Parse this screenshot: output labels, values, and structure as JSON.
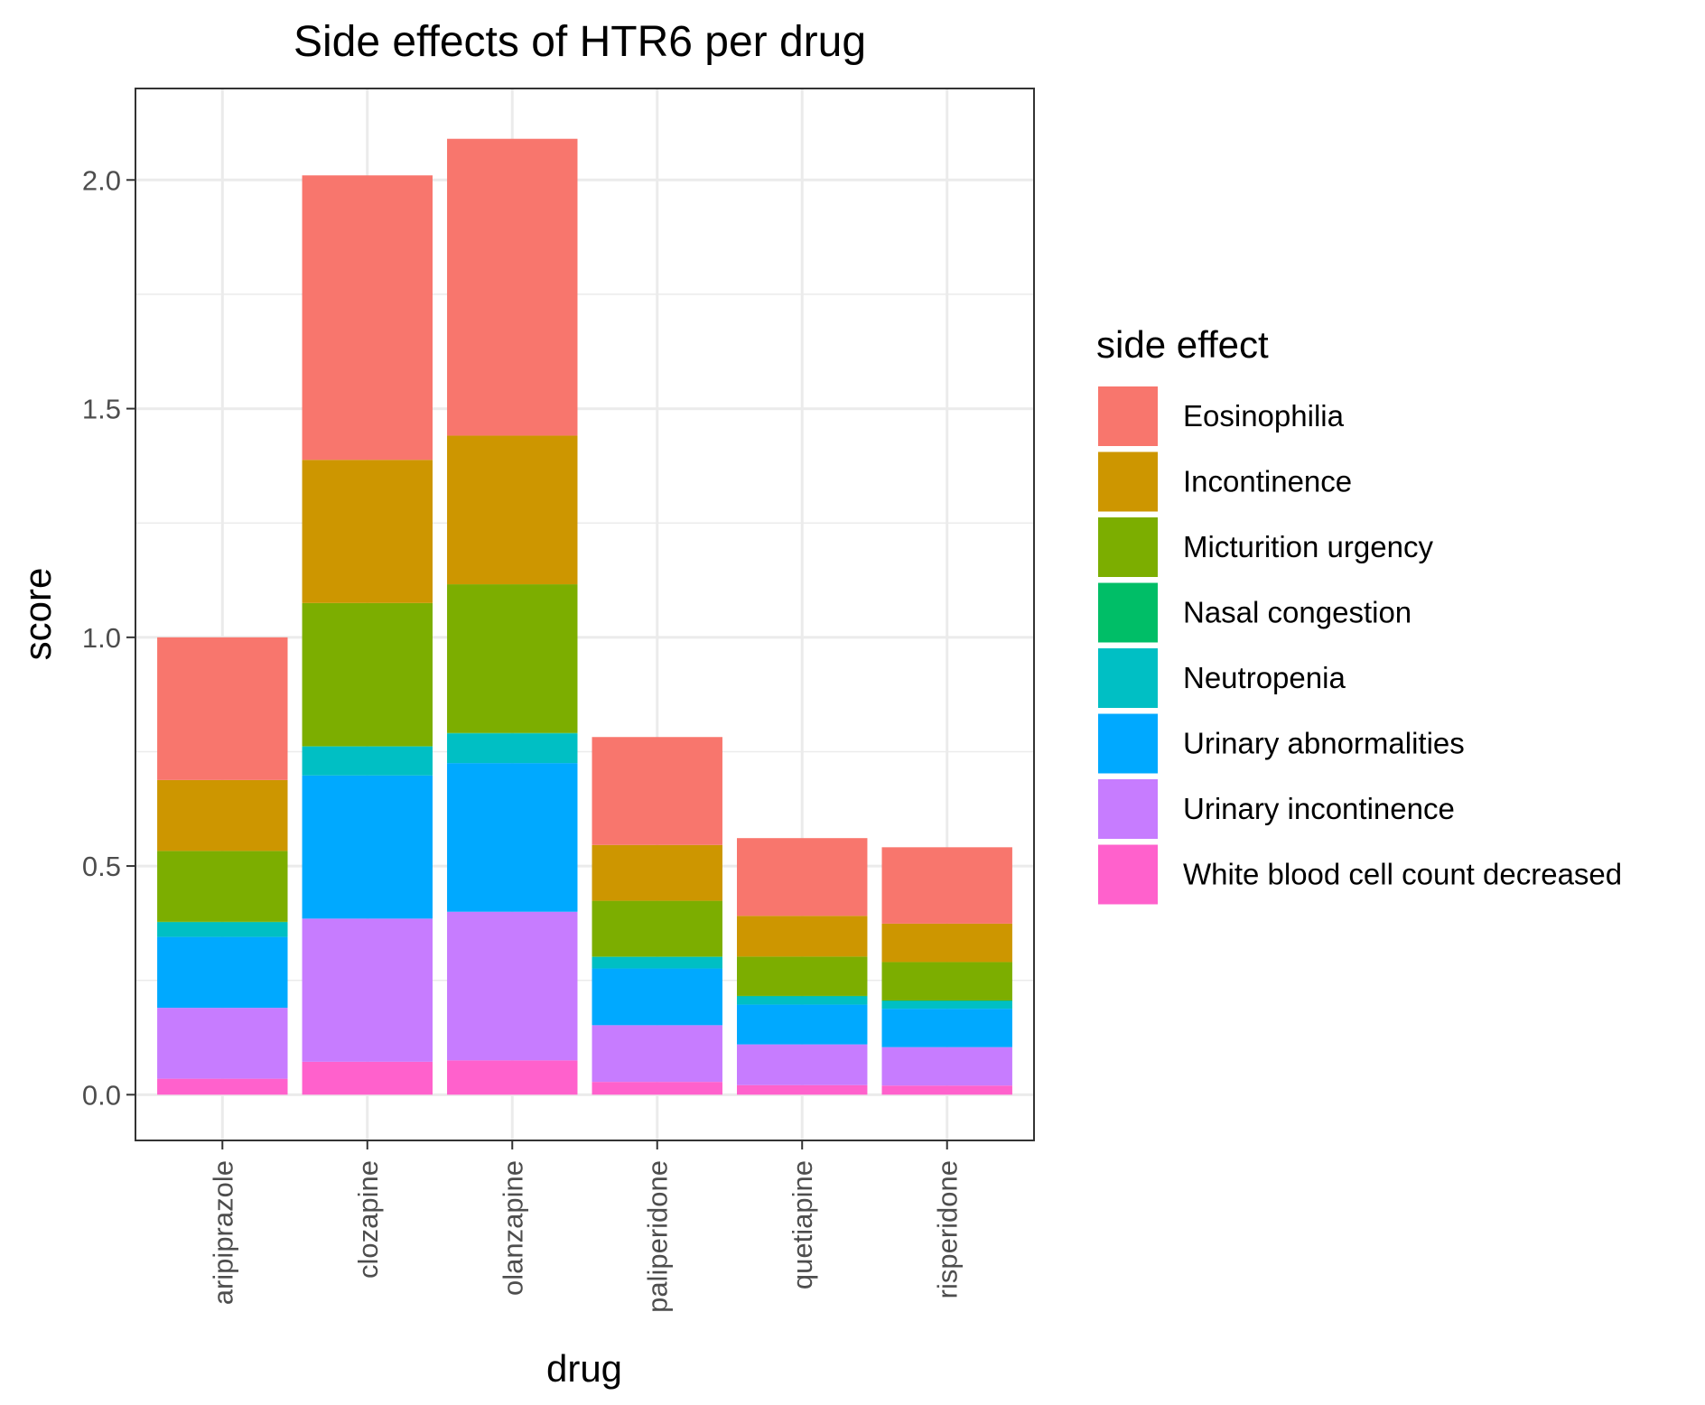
{
  "chart_data": {
    "type": "bar",
    "stacked": true,
    "title": "Side effects of HTR6 per drug",
    "xlabel": "drug",
    "ylabel": "score",
    "ylim": [
      -0.1,
      2.2
    ],
    "yticks": [
      "0.0",
      "0.5",
      "1.0",
      "1.5",
      "2.0"
    ],
    "grid": true,
    "legend_title": "side effect",
    "legend_position": "right",
    "categories": [
      "aripiprazole",
      "clozapine",
      "olanzapine",
      "paliperidone",
      "quetiapine",
      "risperidone"
    ],
    "series": [
      {
        "name": "White blood cell count decreased",
        "color": "#FF61CC",
        "values": [
          0.035,
          0.072,
          0.075,
          0.028,
          0.021,
          0.02
        ]
      },
      {
        "name": "Urinary incontinence",
        "color": "#C77CFF",
        "values": [
          0.155,
          0.313,
          0.325,
          0.124,
          0.089,
          0.084
        ]
      },
      {
        "name": "Urinary abnormalities",
        "color": "#00A9FF",
        "values": [
          0.155,
          0.313,
          0.325,
          0.124,
          0.087,
          0.084
        ]
      },
      {
        "name": "Neutropenia",
        "color": "#00BFC4",
        "values": [
          0.032,
          0.063,
          0.065,
          0.025,
          0.018,
          0.017
        ]
      },
      {
        "name": "Nasal congestion",
        "color": "#00BE67",
        "values": [
          0.001,
          0.001,
          0.001,
          0.001,
          0.001,
          0.001
        ]
      },
      {
        "name": "Micturition urgency",
        "color": "#7CAE00",
        "values": [
          0.155,
          0.313,
          0.325,
          0.122,
          0.086,
          0.084
        ]
      },
      {
        "name": "Incontinence",
        "color": "#CD9600",
        "values": [
          0.155,
          0.313,
          0.325,
          0.122,
          0.089,
          0.084
        ]
      },
      {
        "name": "Eosinophilia",
        "color": "#F8766D",
        "values": [
          0.312,
          0.622,
          0.649,
          0.236,
          0.17,
          0.167
        ]
      }
    ],
    "legend_order": [
      "Eosinophilia",
      "Incontinence",
      "Micturition urgency",
      "Nasal congestion",
      "Neutropenia",
      "Urinary abnormalities",
      "Urinary incontinence",
      "White blood cell count decreased"
    ]
  }
}
